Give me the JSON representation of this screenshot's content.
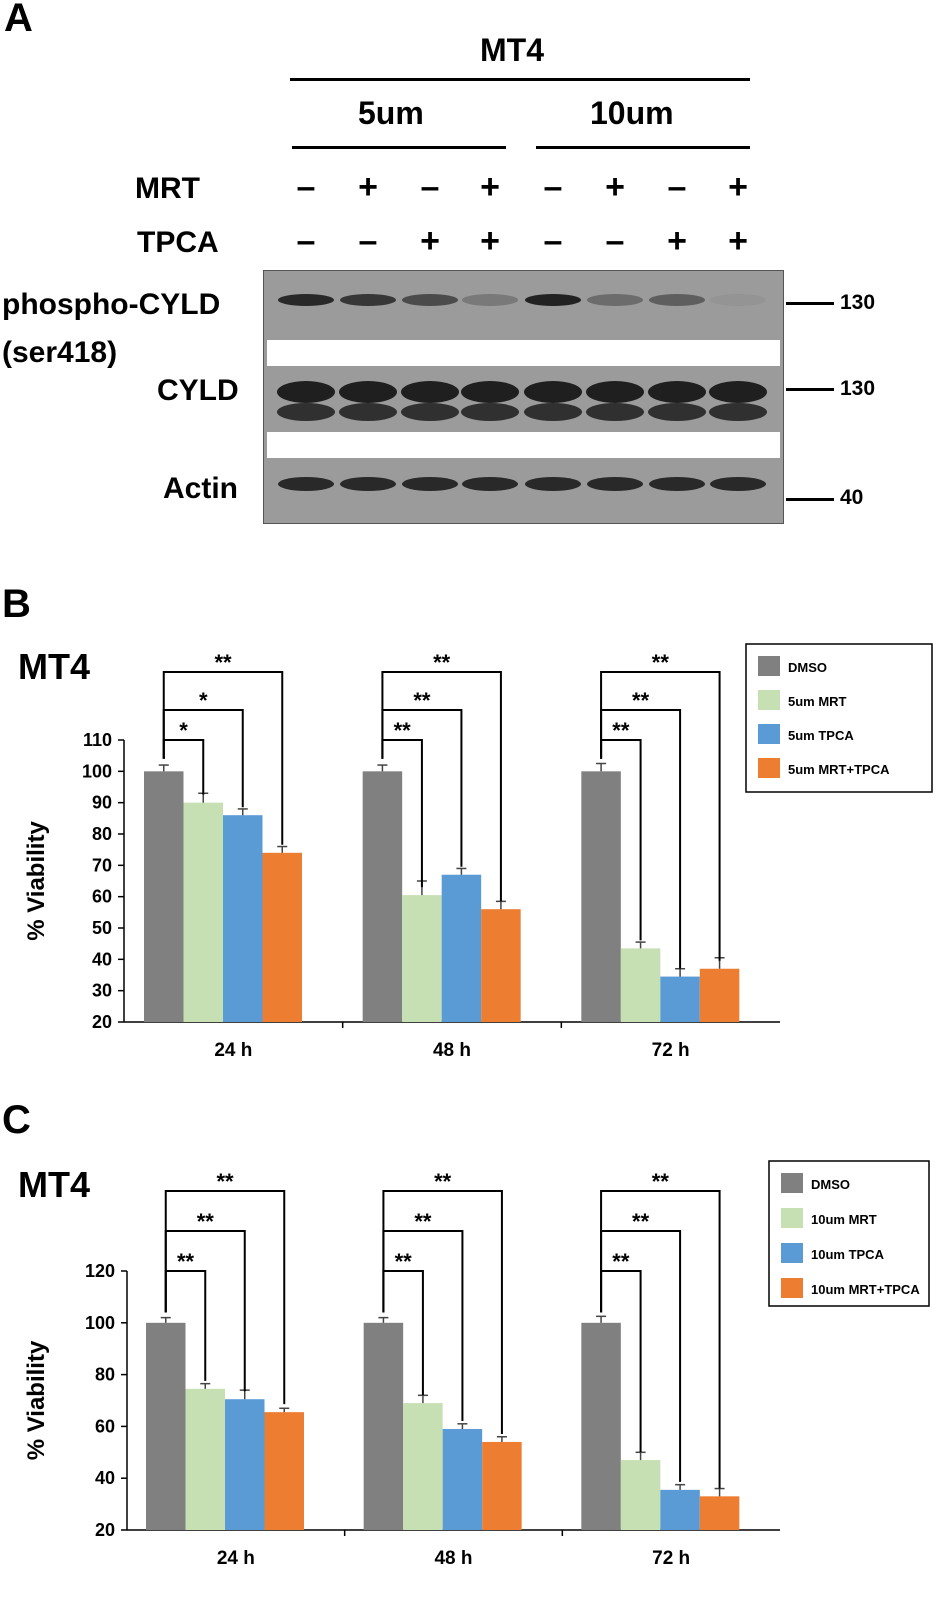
{
  "panel_a": {
    "letter": "A",
    "cell_line": "MT4",
    "concentrations": [
      "5um",
      "10um"
    ],
    "rows": [
      {
        "label": "MRT",
        "signs": [
          "–",
          "+",
          "–",
          "+",
          "–",
          "+",
          "–",
          "+"
        ]
      },
      {
        "label": "TPCA",
        "signs": [
          "–",
          "–",
          "+",
          "+",
          "–",
          "–",
          "+",
          "+"
        ]
      }
    ],
    "blots": {
      "phospho_label_1": "phospho-CYLD",
      "phospho_label_2": "(ser418)",
      "cyld_label": "CYLD",
      "actin_label": "Actin"
    },
    "mw_markers": [
      "130",
      "130",
      "40"
    ]
  },
  "chart_data": [
    {
      "type": "bar",
      "panel": "B",
      "title": "MT4",
      "ylabel": "% Viability",
      "xlabel": "",
      "categories": [
        "24 h",
        "48 h",
        "72 h"
      ],
      "ylim": [
        20,
        110
      ],
      "yticks": [
        20,
        30,
        40,
        50,
        60,
        70,
        80,
        90,
        100,
        110
      ],
      "series": [
        {
          "name": "DMSO",
          "color": "#808080",
          "values": [
            100,
            100,
            100
          ],
          "errors": [
            2,
            2,
            2.5
          ]
        },
        {
          "name": "5um MRT",
          "color": "#c6e0b4",
          "values": [
            90,
            60.5,
            43.5
          ],
          "errors": [
            3,
            4.5,
            2
          ]
        },
        {
          "name": "5um TPCA",
          "color": "#5b9bd5",
          "values": [
            86,
            67,
            34.5
          ],
          "errors": [
            2,
            2,
            2.5
          ]
        },
        {
          "name": "5um MRT+TPCA",
          "color": "#ed7d31",
          "values": [
            74,
            56,
            37
          ],
          "errors": [
            2,
            2.5,
            3.5
          ]
        }
      ],
      "significance": [
        [
          "*",
          "*",
          "**"
        ],
        [
          "**",
          "**",
          "**"
        ],
        [
          "**",
          "**",
          "**"
        ]
      ],
      "legend_position": "top-right"
    },
    {
      "type": "bar",
      "panel": "C",
      "title": "MT4",
      "ylabel": "% Viability",
      "xlabel": "",
      "categories": [
        "24 h",
        "48 h",
        "72 h"
      ],
      "ylim": [
        20,
        120
      ],
      "yticks": [
        20,
        40,
        60,
        80,
        100,
        120
      ],
      "series": [
        {
          "name": "DMSO",
          "color": "#808080",
          "values": [
            100,
            100,
            100
          ],
          "errors": [
            2,
            2,
            2.5
          ]
        },
        {
          "name": "10um MRT",
          "color": "#c6e0b4",
          "values": [
            74.5,
            69,
            47
          ],
          "errors": [
            2,
            3,
            3
          ]
        },
        {
          "name": "10um TPCA",
          "color": "#5b9bd5",
          "values": [
            70.5,
            59,
            35.5
          ],
          "errors": [
            3.5,
            2,
            2
          ]
        },
        {
          "name": "10um MRT+TPCA",
          "color": "#ed7d31",
          "values": [
            65.5,
            54,
            33
          ],
          "errors": [
            1.5,
            2,
            3
          ]
        }
      ],
      "significance": [
        [
          "**",
          "**",
          "**"
        ],
        [
          "**",
          "**",
          "**"
        ],
        [
          "**",
          "**",
          "**"
        ]
      ],
      "legend_position": "top-right"
    }
  ]
}
